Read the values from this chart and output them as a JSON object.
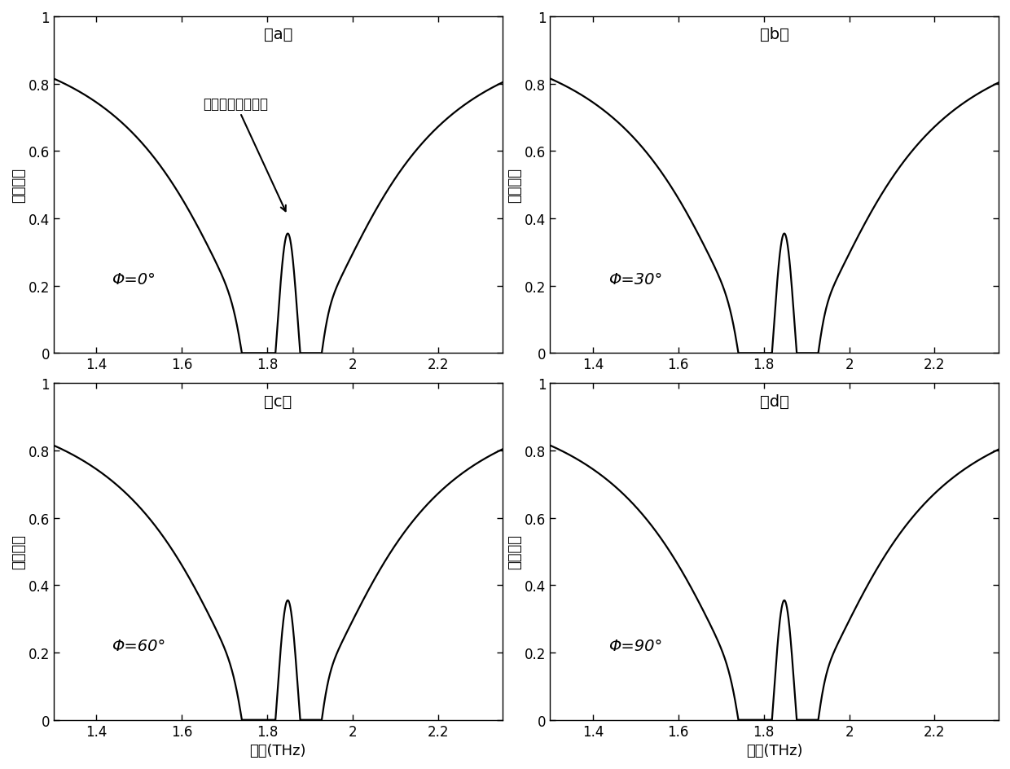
{
  "subplots": [
    {
      "label": "（a）",
      "phi_label": "Φ=0°",
      "show_annotation": true
    },
    {
      "label": "（b）",
      "phi_label": "Φ=30°",
      "show_annotation": false
    },
    {
      "label": "（c）",
      "phi_label": "Φ=60°",
      "show_annotation": false
    },
    {
      "label": "（d）",
      "phi_label": "Φ=90°",
      "show_annotation": false
    }
  ],
  "xlim": [
    1.3,
    2.35
  ],
  "ylim": [
    0,
    1.0
  ],
  "xlabel": "频率(THz)",
  "ylabel": "传输系数",
  "xticks": [
    1.4,
    1.6,
    1.8,
    2.0,
    2.2
  ],
  "yticks": [
    0,
    0.2,
    0.4,
    0.6,
    0.8,
    1
  ],
  "annotation_text": "电磁诱导透明窗口",
  "line_color": "#000000",
  "bg_color": "#ffffff"
}
